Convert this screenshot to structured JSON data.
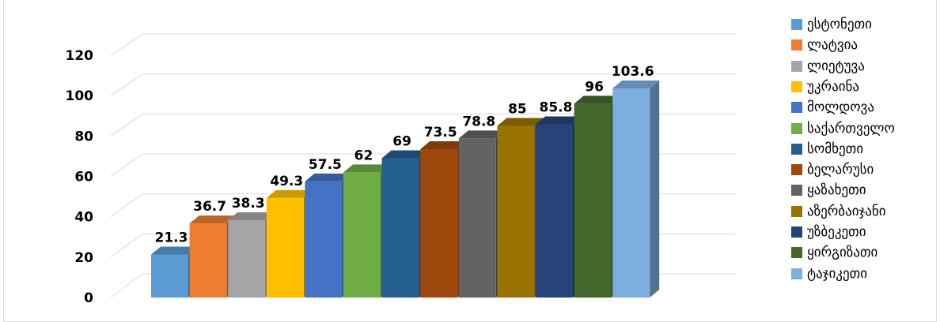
{
  "chart_data": {
    "type": "bar",
    "three_d": true,
    "categories": [
      "ესტონეთი",
      "ლატვია",
      "ლიეტუვა",
      "უკრაინა",
      "მოლდოვა",
      "საქართველო",
      "სომხეთი",
      "ბელარუსი",
      "ყაზახეთი",
      "აზერბაიჯანი",
      "უზბეკეთი",
      "ყირგიზათი",
      "ტაჯიკეთი"
    ],
    "values": [
      21.3,
      36.7,
      38.3,
      49.3,
      57.5,
      62,
      69,
      73.5,
      78.8,
      85,
      85.8,
      96,
      103.6
    ],
    "value_labels": [
      "21.3",
      "36.7",
      "38.3",
      "49.3",
      "57.5",
      "62",
      "69",
      "73.5",
      "78.8",
      "85",
      "85.8",
      "96",
      "103.6"
    ],
    "colors": [
      "#5b9bd5",
      "#ed7d31",
      "#a5a5a5",
      "#ffc000",
      "#4472c4",
      "#70ad47",
      "#255e91",
      "#9e480e",
      "#636363",
      "#997300",
      "#264478",
      "#43682b",
      "#7cafdd"
    ],
    "ylim": [
      0,
      120
    ],
    "yticks": [
      "0",
      "20",
      "40",
      "60",
      "80",
      "100",
      "120"
    ],
    "grid": true,
    "legend_position": "right",
    "title": ""
  }
}
